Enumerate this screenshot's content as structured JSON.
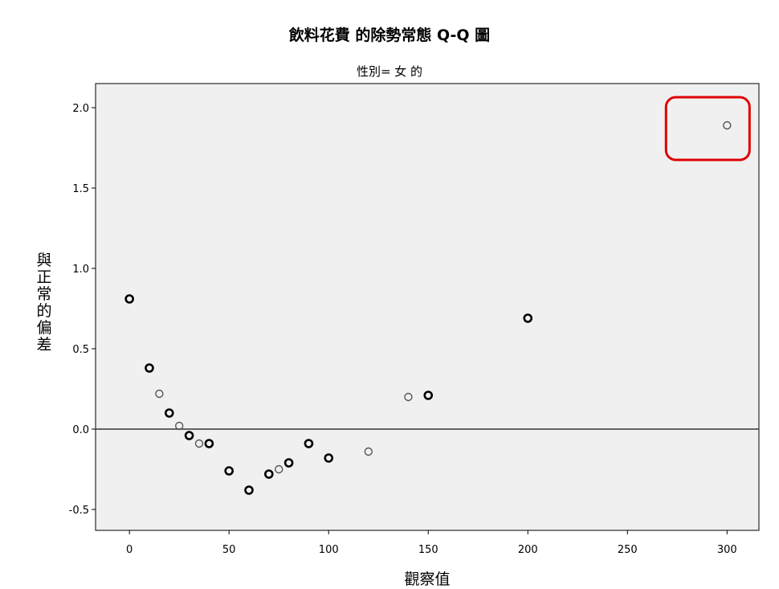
{
  "chart_data": {
    "type": "scatter",
    "title": "飲料花費 的除勢常態 Q-Q 圖",
    "subtitle": "性別= 女 的",
    "xlabel": "觀察值",
    "ylabel": "與正常的偏差",
    "xlim": [
      -17,
      316
    ],
    "ylim": [
      -0.63,
      2.15
    ],
    "xticks": [
      0,
      50,
      100,
      150,
      200,
      250,
      300
    ],
    "yticks": [
      -0.5,
      0.0,
      0.5,
      1.0,
      1.5,
      2.0
    ],
    "xtick_labels": [
      "0",
      "50",
      "100",
      "150",
      "200",
      "250",
      "300"
    ],
    "ytick_labels": [
      "-0.5",
      "0.0",
      "0.5",
      "1.0",
      "1.5",
      "2.0"
    ],
    "reference_line_y": 0,
    "grid": false,
    "plot_background": "#f0f0f0",
    "marker_color": "#000000",
    "highlight_color": "#e00000",
    "points": [
      {
        "x": 0,
        "y": 0.81,
        "weight": "bold"
      },
      {
        "x": 10,
        "y": 0.38,
        "weight": "bold"
      },
      {
        "x": 15,
        "y": 0.22,
        "weight": "normal"
      },
      {
        "x": 20,
        "y": 0.1,
        "weight": "bold"
      },
      {
        "x": 25,
        "y": 0.02,
        "weight": "normal"
      },
      {
        "x": 30,
        "y": -0.04,
        "weight": "bold"
      },
      {
        "x": 35,
        "y": -0.09,
        "weight": "normal"
      },
      {
        "x": 40,
        "y": -0.09,
        "weight": "bold"
      },
      {
        "x": 50,
        "y": -0.26,
        "weight": "bold"
      },
      {
        "x": 60,
        "y": -0.38,
        "weight": "bold"
      },
      {
        "x": 70,
        "y": -0.28,
        "weight": "bold"
      },
      {
        "x": 75,
        "y": -0.25,
        "weight": "normal"
      },
      {
        "x": 80,
        "y": -0.21,
        "weight": "bold"
      },
      {
        "x": 90,
        "y": -0.09,
        "weight": "bold"
      },
      {
        "x": 100,
        "y": -0.18,
        "weight": "bold"
      },
      {
        "x": 120,
        "y": -0.14,
        "weight": "normal"
      },
      {
        "x": 140,
        "y": 0.2,
        "weight": "normal"
      },
      {
        "x": 150,
        "y": 0.21,
        "weight": "bold"
      },
      {
        "x": 200,
        "y": 0.69,
        "weight": "bold"
      },
      {
        "x": 300,
        "y": 1.89,
        "weight": "normal",
        "highlighted": true
      }
    ]
  }
}
